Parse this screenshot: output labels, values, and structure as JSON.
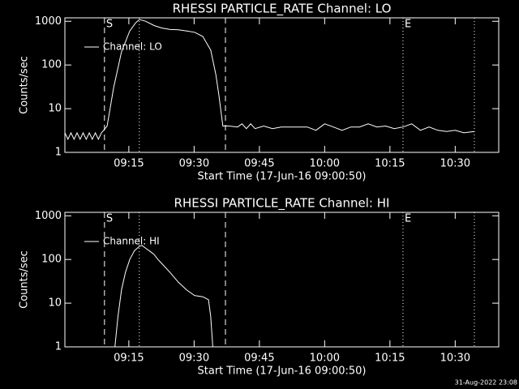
{
  "chart_data": [
    {
      "type": "line",
      "title": "RHESSI PARTICLE_RATE Channel: LO",
      "x_label": "Start Time (17-Jun-16 09:00:50)",
      "y_label": "Counts/sec",
      "log_y": true,
      "xlim": [
        0.3,
        100
      ],
      "ylim": [
        1,
        1200
      ],
      "yticks": [
        1,
        10,
        100,
        1000
      ],
      "xticks": [
        {
          "value": 15,
          "label": "09:15"
        },
        {
          "value": 30,
          "label": "09:30"
        },
        {
          "value": 45,
          "label": "09:45"
        },
        {
          "value": 60,
          "label": "10:00"
        },
        {
          "value": 75,
          "label": "10:15"
        },
        {
          "value": 90,
          "label": "10:30"
        }
      ],
      "vlines": [
        {
          "x": 9.4,
          "style": "dashed",
          "label": "S"
        },
        {
          "x": 17.4,
          "style": "dotted"
        },
        {
          "x": 37.2,
          "style": "dashed"
        },
        {
          "x": 78,
          "style": "dotted",
          "label": "E"
        },
        {
          "x": 94.4,
          "style": "dotted"
        }
      ],
      "x": [
        0.3,
        1.0,
        1.7,
        2.4,
        3.1,
        3.8,
        4.5,
        5.2,
        5.9,
        6.6,
        7.3,
        8.0,
        8.7,
        9.2,
        10,
        11.5,
        13.3,
        15.2,
        16.5,
        17.4,
        18.9,
        20.8,
        22.6,
        24.5,
        26.4,
        28.3,
        30.1,
        32,
        33.8,
        35,
        35.7,
        36.6,
        38,
        40,
        41,
        42,
        43,
        44,
        46,
        48,
        50,
        52,
        54,
        56,
        58,
        60,
        62,
        64,
        66,
        68,
        70,
        72,
        74,
        76,
        78,
        80,
        82,
        84,
        86,
        88,
        90,
        92,
        94.4
      ],
      "series": [
        {
          "name": "Channel: LO",
          "color": "#ffffff",
          "values": [
            2.8,
            2.0,
            2.8,
            2.0,
            2.8,
            2.0,
            2.8,
            2.0,
            2.8,
            2.0,
            2.8,
            2.0,
            2.8,
            3.2,
            4,
            30,
            200,
            600,
            900,
            1100,
            1000,
            800,
            700,
            650,
            640,
            600,
            560,
            450,
            220,
            60,
            20,
            4,
            4,
            3.8,
            4.5,
            3.5,
            4.5,
            3.5,
            4,
            3.5,
            3.8,
            3.8,
            3.8,
            3.8,
            3.2,
            4.5,
            3.8,
            3.2,
            3.8,
            3.8,
            4.5,
            3.8,
            4,
            3.5,
            3.8,
            4.5,
            3.2,
            3.8,
            3.2,
            3.0,
            3.2,
            2.8,
            3.0
          ]
        }
      ]
    },
    {
      "type": "line",
      "title": "RHESSI PARTICLE_RATE Channel: HI",
      "x_label": "Start Time (17-Jun-16 09:00:50)",
      "y_label": "Counts/sec",
      "log_y": true,
      "xlim": [
        0.3,
        100
      ],
      "ylim": [
        1,
        1200
      ],
      "yticks": [
        1,
        10,
        100,
        1000
      ],
      "xticks": [
        {
          "value": 15,
          "label": "09:15"
        },
        {
          "value": 30,
          "label": "09:30"
        },
        {
          "value": 45,
          "label": "09:45"
        },
        {
          "value": 60,
          "label": "10:00"
        },
        {
          "value": 75,
          "label": "10:15"
        },
        {
          "value": 90,
          "label": "10:30"
        }
      ],
      "vlines": [
        {
          "x": 9.4,
          "style": "dashed",
          "label": "S"
        },
        {
          "x": 17.4,
          "style": "dotted"
        },
        {
          "x": 37.2,
          "style": "dashed"
        },
        {
          "x": 78,
          "style": "dotted",
          "label": "E"
        },
        {
          "x": 94.4,
          "style": "dotted"
        }
      ],
      "x": [
        11.8,
        12.5,
        13.3,
        14.2,
        15.2,
        16.3,
        17.4,
        18.0,
        18.9,
        20.0,
        20.8,
        21.7,
        22.6,
        24.5,
        26.4,
        28.3,
        30.1,
        32.0,
        33.3,
        33.8,
        34.3
      ],
      "series": [
        {
          "name": "Channel: HI",
          "color": "#ffffff",
          "values": [
            1,
            5,
            20,
            50,
            100,
            160,
            200,
            210,
            180,
            150,
            130,
            100,
            80,
            50,
            30,
            20,
            15,
            14,
            12,
            5,
            1
          ]
        }
      ]
    }
  ],
  "footer": "31-Aug-2022 23:08"
}
